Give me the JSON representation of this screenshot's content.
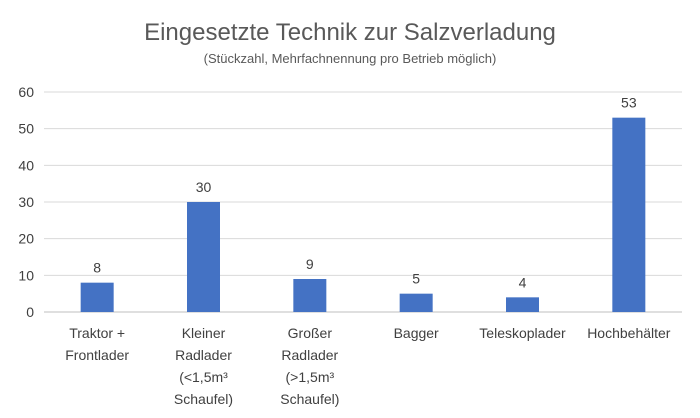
{
  "chart_data": {
    "type": "bar",
    "title": "Eingesetzte Technik zur Salzverladung",
    "subtitle": "(Stückzahl, Mehrfachnennung pro Betrieb möglich)",
    "categories": [
      [
        "Traktor +",
        "Frontlader"
      ],
      [
        "Kleiner",
        "Radlader",
        "(<1,5m³",
        "Schaufel)"
      ],
      [
        "Großer",
        "Radlader",
        "(>1,5m³",
        "Schaufel)"
      ],
      [
        "Bagger"
      ],
      [
        "Teleskoplader"
      ],
      [
        "Hochbehälter"
      ]
    ],
    "values": [
      8,
      30,
      9,
      5,
      4,
      53
    ],
    "data_labels": [
      "8",
      "30",
      "9",
      "5",
      "4",
      "53"
    ],
    "yticks": [
      "0",
      "10",
      "20",
      "30",
      "40",
      "50",
      "60"
    ],
    "ylim": [
      0,
      60
    ],
    "grid": true,
    "legend": "none",
    "bar_color": "#4472c4"
  }
}
